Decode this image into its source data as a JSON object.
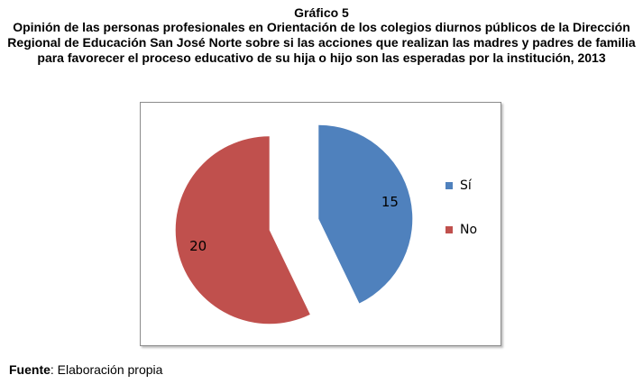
{
  "figure": {
    "label": "Gráfico 5",
    "title": "Opinión de las personas profesionales en Orientación de los colegios diurnos públicos de la Dirección Regional de Educación San José Norte sobre si las acciones que realizan las madres y padres de familia para favorecer el proceso educativo de su hija o hijo son las esperadas por la institución, 2013"
  },
  "source": {
    "label": "Fuente",
    "text": ": Elaboración propia"
  },
  "chart_data": {
    "type": "pie",
    "title": "",
    "categories": [
      "Sí",
      "No"
    ],
    "values": [
      15,
      20
    ],
    "colors": [
      "#4f81bd",
      "#c0504d"
    ],
    "exploded": true,
    "show_data_labels": true,
    "legend_position": "right"
  }
}
